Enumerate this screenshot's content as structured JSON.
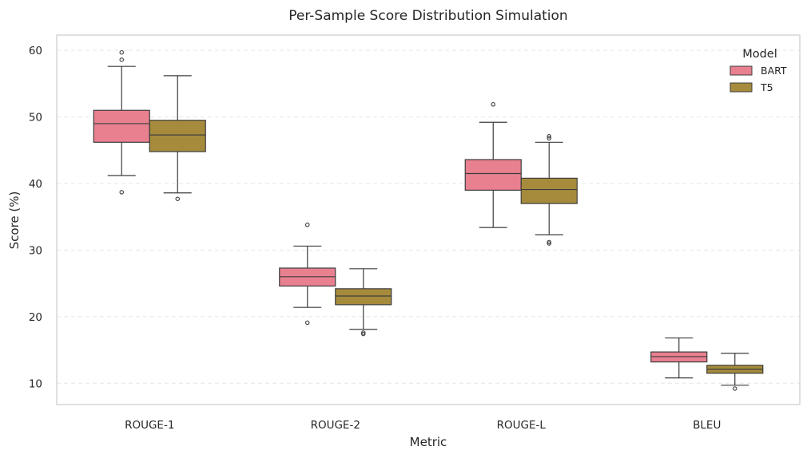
{
  "chart_data": {
    "type": "box",
    "title": "Per-Sample Score Distribution Simulation",
    "xlabel": "Metric",
    "ylabel": "Score (%)",
    "categories": [
      "ROUGE-1",
      "ROUGE-2",
      "ROUGE-L",
      "BLEU"
    ],
    "ylim": [
      6.8,
      62.3
    ],
    "yticks": [
      10,
      20,
      30,
      40,
      50,
      60
    ],
    "grid": "y-dashed",
    "legend": {
      "title": "Model",
      "position": "top-right"
    },
    "series": [
      {
        "name": "BART",
        "color": "#e8808f",
        "boxes": [
          {
            "whisker_low": 41.2,
            "q1": 46.2,
            "median": 49.0,
            "q3": 51.0,
            "whisker_high": 57.6,
            "outliers": [
              38.7,
              58.6,
              59.7
            ]
          },
          {
            "whisker_low": 21.4,
            "q1": 24.6,
            "median": 26.0,
            "q3": 27.3,
            "whisker_high": 30.6,
            "outliers": [
              19.1,
              33.8
            ]
          },
          {
            "whisker_low": 33.4,
            "q1": 39.0,
            "median": 41.5,
            "q3": 43.6,
            "whisker_high": 49.2,
            "outliers": [
              51.9
            ]
          },
          {
            "whisker_low": 10.8,
            "q1": 13.2,
            "median": 14.0,
            "q3": 14.7,
            "whisker_high": 16.8,
            "outliers": []
          }
        ]
      },
      {
        "name": "T5",
        "color": "#a68b3c",
        "boxes": [
          {
            "whisker_low": 38.6,
            "q1": 44.8,
            "median": 47.3,
            "q3": 49.5,
            "whisker_high": 56.2,
            "outliers": [
              37.7
            ]
          },
          {
            "whisker_low": 18.1,
            "q1": 21.8,
            "median": 23.1,
            "q3": 24.2,
            "whisker_high": 27.2,
            "outliers": [
              17.4,
              17.6
            ]
          },
          {
            "whisker_low": 32.3,
            "q1": 37.0,
            "median": 39.1,
            "q3": 40.8,
            "whisker_high": 46.2,
            "outliers": [
              31.0,
              31.2,
              46.8,
              47.1
            ]
          },
          {
            "whisker_low": 9.7,
            "q1": 11.5,
            "median": 12.1,
            "q3": 12.7,
            "whisker_high": 14.5,
            "outliers": [
              9.2
            ]
          }
        ]
      }
    ]
  }
}
